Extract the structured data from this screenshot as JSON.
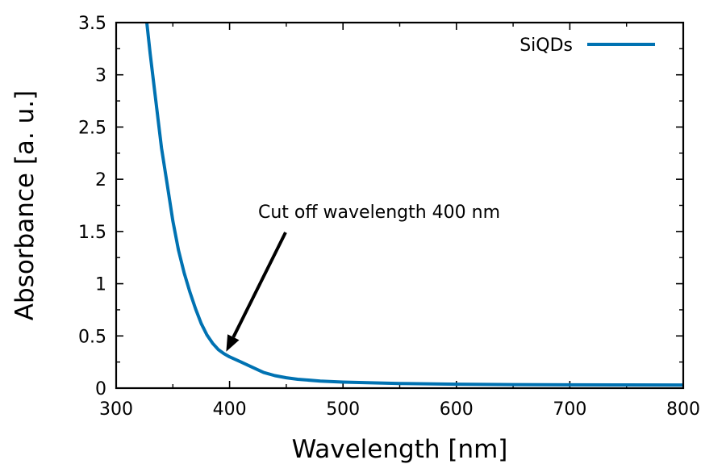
{
  "chart_data": {
    "type": "line",
    "title": "",
    "xlabel": "Wavelength [nm]",
    "ylabel": "Absorbance [a. u.]",
    "xlim": [
      300,
      800
    ],
    "ylim": [
      0,
      3.5
    ],
    "xticks": [
      300,
      400,
      500,
      600,
      700,
      800
    ],
    "xtick_labels": [
      "300",
      "400",
      "500",
      "600",
      "700",
      "800"
    ],
    "yticks": [
      0,
      0.5,
      1,
      1.5,
      2,
      2.5,
      3,
      3.5
    ],
    "ytick_labels": [
      "0",
      "0.5",
      "1",
      "1.5",
      "2",
      "2.5",
      "3",
      "3.5"
    ],
    "grid": false,
    "legend_position": "top-right",
    "series": [
      {
        "name": "SiQDs",
        "color": "#0072b2",
        "x": [
          327,
          330,
          335,
          340,
          345,
          350,
          355,
          360,
          365,
          370,
          375,
          380,
          385,
          390,
          395,
          400,
          410,
          420,
          430,
          440,
          450,
          460,
          480,
          500,
          550,
          600,
          650,
          700,
          750,
          800
        ],
        "y": [
          3.5,
          3.2,
          2.75,
          2.3,
          1.95,
          1.6,
          1.32,
          1.1,
          0.92,
          0.76,
          0.62,
          0.51,
          0.43,
          0.37,
          0.33,
          0.3,
          0.25,
          0.2,
          0.15,
          0.12,
          0.1,
          0.085,
          0.068,
          0.058,
          0.045,
          0.038,
          0.034,
          0.032,
          0.031,
          0.03
        ]
      }
    ],
    "annotations": [
      {
        "text": "Cut off wavelength 400 nm",
        "point": [
          397,
          0.35
        ]
      }
    ]
  }
}
